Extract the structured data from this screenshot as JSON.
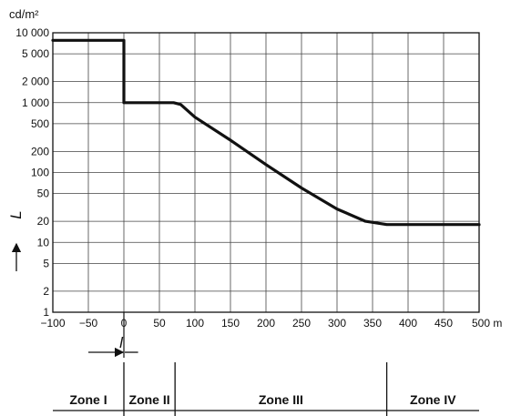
{
  "chart_data": {
    "type": "line",
    "scale_y": "log",
    "grid": true,
    "ylabel_top": "cd/m²",
    "ylabel_side": "L",
    "x_unit": "m",
    "xlim": [
      -100,
      500
    ],
    "ylim": [
      1,
      10000
    ],
    "x_ticks": [
      -100,
      -50,
      0,
      50,
      100,
      150,
      200,
      250,
      300,
      350,
      400,
      450,
      500
    ],
    "x_tick_labels": [
      "−100",
      "−50",
      "0",
      "50",
      "100",
      "150",
      "200",
      "250",
      "300",
      "350",
      "400",
      "450",
      "500 m"
    ],
    "y_ticks": [
      1,
      2,
      5,
      10,
      20,
      50,
      100,
      200,
      500,
      1000,
      2000,
      5000,
      10000
    ],
    "y_tick_labels": [
      "1",
      "2",
      "5",
      "10",
      "20",
      "50",
      "100",
      "200",
      "500",
      "1 000",
      "2 000",
      "5 000",
      "10 000"
    ],
    "series": [
      {
        "x": [
          -100,
          0,
          0,
          70,
          80,
          100,
          150,
          200,
          250,
          300,
          340,
          370,
          500
        ],
        "y": [
          7800,
          7800,
          1000,
          1000,
          940,
          620,
          290,
          130,
          60,
          30,
          20,
          18,
          18
        ]
      }
    ],
    "annotations": {
      "length_symbol": "l",
      "length_from": -50,
      "length_to": 20
    },
    "zones": [
      {
        "label": "Zone I",
        "from": -100,
        "to": 0
      },
      {
        "label": "Zone II",
        "from": 0,
        "to": 72
      },
      {
        "label": "Zone III",
        "from": 72,
        "to": 370
      },
      {
        "label": "Zone IV",
        "from": 370,
        "to": 500
      }
    ]
  },
  "colors": {
    "ink": "#111111",
    "background": "#ffffff"
  }
}
